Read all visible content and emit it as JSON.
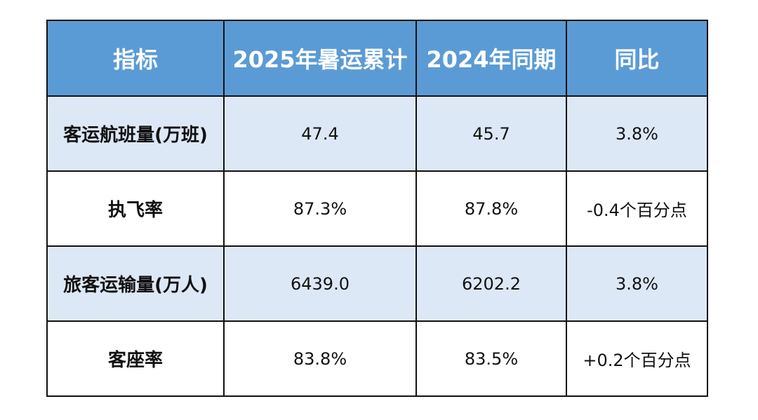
{
  "table": {
    "headers": [
      "指标",
      "2025年暑运累计",
      "2024年同期",
      "同比"
    ],
    "rows": [
      {
        "metric": "客运航班量(万班)",
        "current": "47.4",
        "previous": "45.7",
        "yoy": "3.8%"
      },
      {
        "metric": "执飞率",
        "current": "87.3%",
        "previous": "87.8%",
        "yoy": "-0.4个百分点"
      },
      {
        "metric": "旅客运输量(万人)",
        "current": "6439.0",
        "previous": "6202.2",
        "yoy": "3.8%"
      },
      {
        "metric": "客座率",
        "current": "83.8%",
        "previous": "83.5%",
        "yoy": "+0.2个百分点"
      }
    ]
  },
  "colors": {
    "header_bg": "#5b9bd5",
    "shaded_row_bg": "#dde8f6",
    "plain_row_bg": "#ffffff",
    "border": "#111111"
  }
}
